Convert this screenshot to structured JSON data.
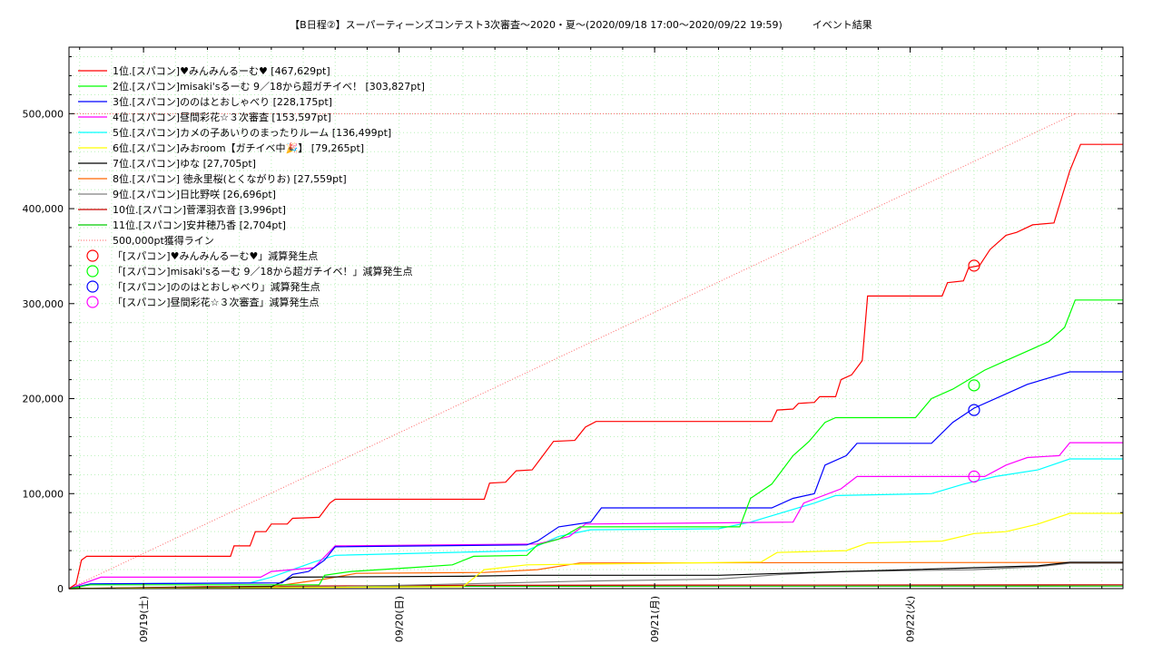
{
  "chart_data": {
    "type": "line",
    "title": "【B日程②】スーパーティーンズコンテスト3次審査〜2020・夏〜(2020/09/18 17:00〜2020/09/22 19:59)　　　イベント結果",
    "ylim": [
      0,
      570000
    ],
    "y_ticks": [
      {
        "value": 0,
        "label": "0"
      },
      {
        "value": 100000,
        "label": "100,000"
      },
      {
        "value": 200000,
        "label": "200,000"
      },
      {
        "value": 300000,
        "label": "300,000"
      },
      {
        "value": 400000,
        "label": "400,000"
      },
      {
        "value": 500000,
        "label": "500,000"
      }
    ],
    "x_range": [
      "2020-09-18 17:00",
      "2020-09-22 19:59"
    ],
    "x_ticks": [
      {
        "value": "2020-09-19 00:00",
        "label": "09/19(土)"
      },
      {
        "value": "2020-09-20 00:00",
        "label": "09/20(日)"
      },
      {
        "value": "2020-09-21 00:00",
        "label": "09/21(月)"
      },
      {
        "value": "2020-09-22 00:00",
        "label": "09/22(火)"
      }
    ],
    "grid": true,
    "legend_position": "top-left",
    "series": [
      {
        "name": "1位.[スパコン]♥みんみんるーむ♥ [467,629pt]",
        "color": "#ff0000",
        "points": [
          [
            "2020-09-18 17:00",
            0
          ],
          [
            "2020-09-18 17:40",
            5000
          ],
          [
            "2020-09-18 18:10",
            30000
          ],
          [
            "2020-09-18 18:40",
            34000
          ],
          [
            "2020-09-19 08:10",
            34000
          ],
          [
            "2020-09-19 08:30",
            45000
          ],
          [
            "2020-09-19 10:00",
            45000
          ],
          [
            "2020-09-19 10:30",
            60000
          ],
          [
            "2020-09-19 11:30",
            60000
          ],
          [
            "2020-09-19 12:00",
            68000
          ],
          [
            "2020-09-19 13:30",
            68000
          ],
          [
            "2020-09-19 14:00",
            74000
          ],
          [
            "2020-09-19 16:30",
            75000
          ],
          [
            "2020-09-19 17:30",
            90000
          ],
          [
            "2020-09-19 18:00",
            94000
          ],
          [
            "2020-09-20 08:00",
            94000
          ],
          [
            "2020-09-20 08:30",
            111000
          ],
          [
            "2020-09-20 10:00",
            112000
          ],
          [
            "2020-09-20 11:00",
            124000
          ],
          [
            "2020-09-20 12:30",
            125000
          ],
          [
            "2020-09-20 13:30",
            140000
          ],
          [
            "2020-09-20 14:30",
            155000
          ],
          [
            "2020-09-20 16:30",
            156000
          ],
          [
            "2020-09-20 17:30",
            170000
          ],
          [
            "2020-09-20 18:30",
            176000
          ],
          [
            "2020-09-21 11:00",
            176000
          ],
          [
            "2020-09-21 11:30",
            188000
          ],
          [
            "2020-09-21 13:00",
            189000
          ],
          [
            "2020-09-21 13:30",
            195000
          ],
          [
            "2020-09-21 15:00",
            196000
          ],
          [
            "2020-09-21 15:30",
            202000
          ],
          [
            "2020-09-21 17:00",
            202000
          ],
          [
            "2020-09-21 17:30",
            220000
          ],
          [
            "2020-09-21 18:30",
            225000
          ],
          [
            "2020-09-21 19:30",
            240000
          ],
          [
            "2020-09-21 20:00",
            308000
          ],
          [
            "2020-09-22 03:00",
            308000
          ],
          [
            "2020-09-22 03:30",
            322000
          ],
          [
            "2020-09-22 05:00",
            324000
          ],
          [
            "2020-09-22 05:30",
            338000
          ],
          [
            "2020-09-22 06:30",
            340000
          ],
          [
            "2020-09-22 07:30",
            357000
          ],
          [
            "2020-09-22 09:00",
            372000
          ],
          [
            "2020-09-22 10:00",
            375000
          ],
          [
            "2020-09-22 11:30",
            383000
          ],
          [
            "2020-09-22 13:30",
            385000
          ],
          [
            "2020-09-22 15:00",
            440000
          ],
          [
            "2020-09-22 16:00",
            467629
          ],
          [
            "2020-09-22 19:59",
            467629
          ]
        ]
      },
      {
        "name": "2位.[スパコン]misaki'sるーむ 9／18から超ガチイベ！ [303,827pt]",
        "color": "#00ff00",
        "points": [
          [
            "2020-09-18 17:00",
            0
          ],
          [
            "2020-09-18 19:00",
            4000
          ],
          [
            "2020-09-19 16:30",
            4000
          ],
          [
            "2020-09-19 17:00",
            14000
          ],
          [
            "2020-09-19 19:30",
            18000
          ],
          [
            "2020-09-20 01:00",
            22000
          ],
          [
            "2020-09-20 05:00",
            25000
          ],
          [
            "2020-09-20 07:00",
            34000
          ],
          [
            "2020-09-20 12:00",
            35000
          ],
          [
            "2020-09-20 13:00",
            46000
          ],
          [
            "2020-09-20 15:00",
            52000
          ],
          [
            "2020-09-20 17:00",
            65000
          ],
          [
            "2020-09-21 08:00",
            65000
          ],
          [
            "2020-09-21 09:00",
            95000
          ],
          [
            "2020-09-21 11:00",
            110000
          ],
          [
            "2020-09-21 13:00",
            140000
          ],
          [
            "2020-09-21 14:30",
            155000
          ],
          [
            "2020-09-21 16:00",
            175000
          ],
          [
            "2020-09-21 17:00",
            180000
          ],
          [
            "2020-09-22 00:30",
            180000
          ],
          [
            "2020-09-22 02:00",
            200000
          ],
          [
            "2020-09-22 04:00",
            210000
          ],
          [
            "2020-09-22 05:30",
            220000
          ],
          [
            "2020-09-22 07:00",
            230000
          ],
          [
            "2020-09-22 09:00",
            240000
          ],
          [
            "2020-09-22 11:00",
            250000
          ],
          [
            "2020-09-22 13:00",
            260000
          ],
          [
            "2020-09-22 14:30",
            275000
          ],
          [
            "2020-09-22 15:30",
            303827
          ],
          [
            "2020-09-22 19:59",
            303827
          ]
        ]
      },
      {
        "name": "3位.[スパコン]ののはとおしゃべり [228,175pt]",
        "color": "#0000ff",
        "points": [
          [
            "2020-09-18 17:00",
            0
          ],
          [
            "2020-09-18 19:00",
            5000
          ],
          [
            "2020-09-19 13:00",
            6000
          ],
          [
            "2020-09-19 14:00",
            15000
          ],
          [
            "2020-09-19 15:30",
            18000
          ],
          [
            "2020-09-19 17:00",
            30000
          ],
          [
            "2020-09-19 18:00",
            44000
          ],
          [
            "2020-09-20 12:00",
            46000
          ],
          [
            "2020-09-20 13:00",
            50000
          ],
          [
            "2020-09-20 15:00",
            65000
          ],
          [
            "2020-09-20 18:00",
            70000
          ],
          [
            "2020-09-20 19:00",
            85000
          ],
          [
            "2020-09-21 11:00",
            85000
          ],
          [
            "2020-09-21 13:00",
            95000
          ],
          [
            "2020-09-21 15:00",
            100000
          ],
          [
            "2020-09-21 16:00",
            130000
          ],
          [
            "2020-09-21 18:00",
            140000
          ],
          [
            "2020-09-21 19:00",
            153000
          ],
          [
            "2020-09-22 02:00",
            153000
          ],
          [
            "2020-09-22 04:00",
            175000
          ],
          [
            "2020-09-22 06:00",
            190000
          ],
          [
            "2020-09-22 09:00",
            205000
          ],
          [
            "2020-09-22 11:00",
            215000
          ],
          [
            "2020-09-22 14:00",
            225000
          ],
          [
            "2020-09-22 15:00",
            228175
          ],
          [
            "2020-09-22 19:59",
            228175
          ]
        ]
      },
      {
        "name": "4位.[スパコン]昼間彩花☆３次審査 [153,597pt]",
        "color": "#ff00ff",
        "points": [
          [
            "2020-09-18 17:00",
            0
          ],
          [
            "2020-09-18 19:00",
            8000
          ],
          [
            "2020-09-18 20:00",
            12000
          ],
          [
            "2020-09-19 11:00",
            12000
          ],
          [
            "2020-09-19 12:00",
            18000
          ],
          [
            "2020-09-19 16:00",
            22000
          ],
          [
            "2020-09-19 18:00",
            45000
          ],
          [
            "2020-09-20 13:00",
            47000
          ],
          [
            "2020-09-20 16:00",
            55000
          ],
          [
            "2020-09-20 17:30",
            68000
          ],
          [
            "2020-09-21 13:00",
            70000
          ],
          [
            "2020-09-21 14:00",
            90000
          ],
          [
            "2020-09-21 17:30",
            105000
          ],
          [
            "2020-09-21 19:00",
            118000
          ],
          [
            "2020-09-22 07:00",
            118000
          ],
          [
            "2020-09-22 09:00",
            130000
          ],
          [
            "2020-09-22 11:00",
            138000
          ],
          [
            "2020-09-22 14:00",
            140000
          ],
          [
            "2020-09-22 15:00",
            153597
          ],
          [
            "2020-09-22 19:59",
            153597
          ]
        ]
      },
      {
        "name": "5位.[スパコン]カメの子あいりのまったりルーム [136,499pt]",
        "color": "#00ffff",
        "points": [
          [
            "2020-09-18 17:00",
            0
          ],
          [
            "2020-09-18 19:00",
            5000
          ],
          [
            "2020-09-19 10:00",
            6000
          ],
          [
            "2020-09-19 12:00",
            12000
          ],
          [
            "2020-09-19 14:00",
            20000
          ],
          [
            "2020-09-19 16:00",
            28000
          ],
          [
            "2020-09-19 18:00",
            35000
          ],
          [
            "2020-09-20 12:00",
            40000
          ],
          [
            "2020-09-20 15:00",
            55000
          ],
          [
            "2020-09-20 18:00",
            62000
          ],
          [
            "2020-09-21 06:00",
            63000
          ],
          [
            "2020-09-21 09:00",
            70000
          ],
          [
            "2020-09-21 12:00",
            80000
          ],
          [
            "2020-09-21 15:00",
            90000
          ],
          [
            "2020-09-21 17:00",
            98000
          ],
          [
            "2020-09-22 02:00",
            100000
          ],
          [
            "2020-09-22 05:00",
            110000
          ],
          [
            "2020-09-22 08:00",
            118000
          ],
          [
            "2020-09-22 12:00",
            125000
          ],
          [
            "2020-09-22 15:00",
            136499
          ],
          [
            "2020-09-22 19:59",
            136499
          ]
        ]
      },
      {
        "name": "6位.[スパコン]みおroom【ガチイベ中🎉】 [79,265pt]",
        "color": "#ffff00",
        "points": [
          [
            "2020-09-18 17:00",
            0
          ],
          [
            "2020-09-20 06:00",
            2000
          ],
          [
            "2020-09-20 08:00",
            20000
          ],
          [
            "2020-09-20 12:00",
            25000
          ],
          [
            "2020-09-21 10:00",
            28000
          ],
          [
            "2020-09-21 11:30",
            38000
          ],
          [
            "2020-09-21 18:00",
            40000
          ],
          [
            "2020-09-21 20:00",
            48000
          ],
          [
            "2020-09-22 03:00",
            50000
          ],
          [
            "2020-09-22 06:00",
            58000
          ],
          [
            "2020-09-22 09:00",
            60000
          ],
          [
            "2020-09-22 12:00",
            68000
          ],
          [
            "2020-09-22 15:00",
            79265
          ],
          [
            "2020-09-22 19:59",
            79265
          ]
        ]
      },
      {
        "name": "7位.[スパコン]ゆな [27,705pt]",
        "color": "#000000",
        "points": [
          [
            "2020-09-18 17:00",
            0
          ],
          [
            "2020-09-19 12:00",
            2000
          ],
          [
            "2020-09-19 14:00",
            12000
          ],
          [
            "2020-09-20 06:00",
            13000
          ],
          [
            "2020-09-20 12:00",
            14000
          ],
          [
            "2020-09-21 06:00",
            14000
          ],
          [
            "2020-09-21 12:00",
            16000
          ],
          [
            "2020-09-21 18:00",
            18000
          ],
          [
            "2020-09-22 00:00",
            20000
          ],
          [
            "2020-09-22 06:00",
            22000
          ],
          [
            "2020-09-22 12:00",
            24000
          ],
          [
            "2020-09-22 15:00",
            27705
          ],
          [
            "2020-09-22 19:59",
            27705
          ]
        ]
      },
      {
        "name": "8位.[スパコン] 徳永里桜(とくながりお) [27,559pt]",
        "color": "#ff6600",
        "points": [
          [
            "2020-09-18 17:00",
            0
          ],
          [
            "2020-09-19 12:00",
            2000
          ],
          [
            "2020-09-19 17:00",
            10000
          ],
          [
            "2020-09-19 20:00",
            16000
          ],
          [
            "2020-09-20 08:00",
            17000
          ],
          [
            "2020-09-20 13:00",
            20000
          ],
          [
            "2020-09-20 17:00",
            27000
          ],
          [
            "2020-09-22 19:59",
            27559
          ]
        ]
      },
      {
        "name": "9位.[スパコン]日比野咲 [26,696pt]",
        "color": "#808080",
        "points": [
          [
            "2020-09-18 17:00",
            0
          ],
          [
            "2020-09-19 18:00",
            2000
          ],
          [
            "2020-09-20 06:00",
            5000
          ],
          [
            "2020-09-20 18:00",
            8000
          ],
          [
            "2020-09-21 06:00",
            10000
          ],
          [
            "2020-09-21 12:00",
            15000
          ],
          [
            "2020-09-21 18:00",
            18000
          ],
          [
            "2020-09-22 06:00",
            20000
          ],
          [
            "2020-09-22 12:00",
            23000
          ],
          [
            "2020-09-22 15:00",
            26696
          ],
          [
            "2020-09-22 19:59",
            26696
          ]
        ]
      },
      {
        "name": "10位.[スパコン]菅澤羽衣音 [3,996pt]",
        "color": "#cc0000",
        "points": [
          [
            "2020-09-18 17:00",
            0
          ],
          [
            "2020-09-19 06:00",
            2000
          ],
          [
            "2020-09-20 06:00",
            3500
          ],
          [
            "2020-09-22 19:59",
            3996
          ]
        ]
      },
      {
        "name": "11位.[スパコン]安井穂乃香 [2,704pt]",
        "color": "#00cc00",
        "points": [
          [
            "2020-09-18 17:00",
            0
          ],
          [
            "2020-09-19 06:00",
            1500
          ],
          [
            "2020-09-20 06:00",
            2500
          ],
          [
            "2020-09-22 19:59",
            2704
          ]
        ]
      }
    ],
    "target_line": {
      "name": "500,000pt獲得ライン",
      "color": "#ff6666",
      "from": 0,
      "to": 500000
    },
    "markers": [
      {
        "name": "「[スパコン]♥みんみんるーむ♥」減算発生点",
        "color": "#ff0000",
        "x": "2020-09-22 06:00",
        "y": 340000
      },
      {
        "name": "「[スパコン]misaki'sるーむ 9／18から超ガチイベ！」減算発生点",
        "color": "#00ff00",
        "x": "2020-09-22 06:00",
        "y": 214000
      },
      {
        "name": "「[スパコン]ののはとおしゃべり」減算発生点",
        "color": "#0000ff",
        "x": "2020-09-22 06:00",
        "y": 188000
      },
      {
        "name": "「[スパコン]昼間彩花☆３次審査」減算発生点",
        "color": "#ff00ff",
        "x": "2020-09-22 06:00",
        "y": 118000
      }
    ]
  }
}
